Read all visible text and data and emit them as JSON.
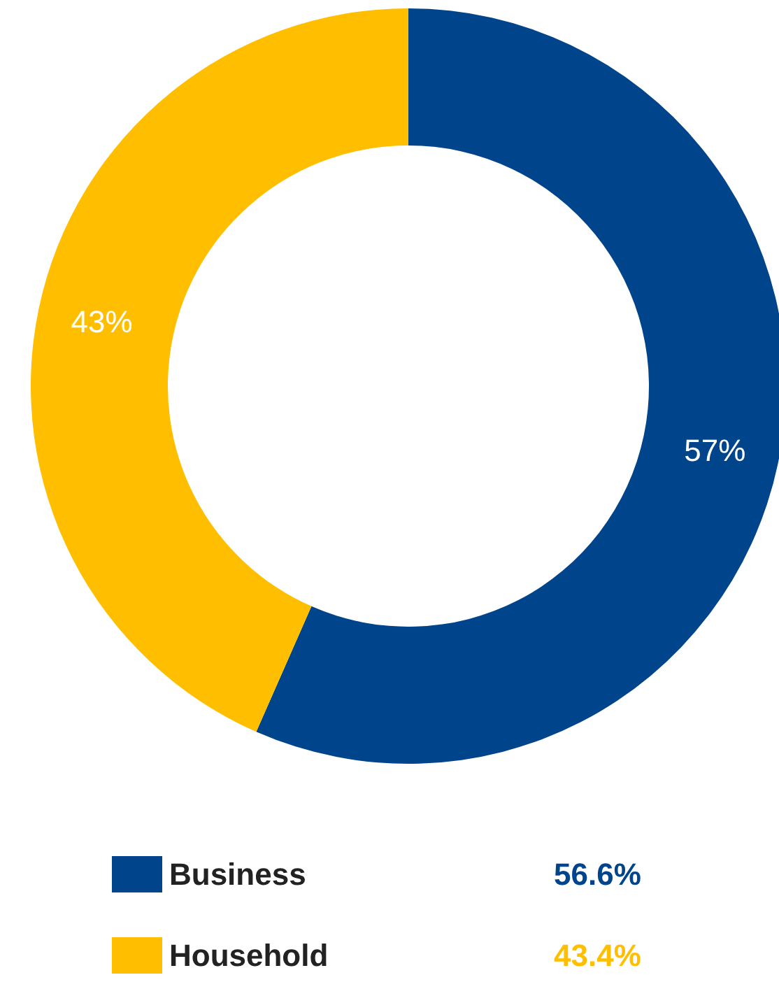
{
  "chart_data": {
    "type": "donut",
    "categories": [
      "Business",
      "Household"
    ],
    "values": [
      56.6,
      43.4
    ],
    "colors": [
      "#00458c",
      "#ffbf00"
    ],
    "value_labels": [
      "57%",
      "43%"
    ],
    "annotations": [
      "56.6%",
      "43.4%"
    ],
    "legend": "bottom"
  }
}
